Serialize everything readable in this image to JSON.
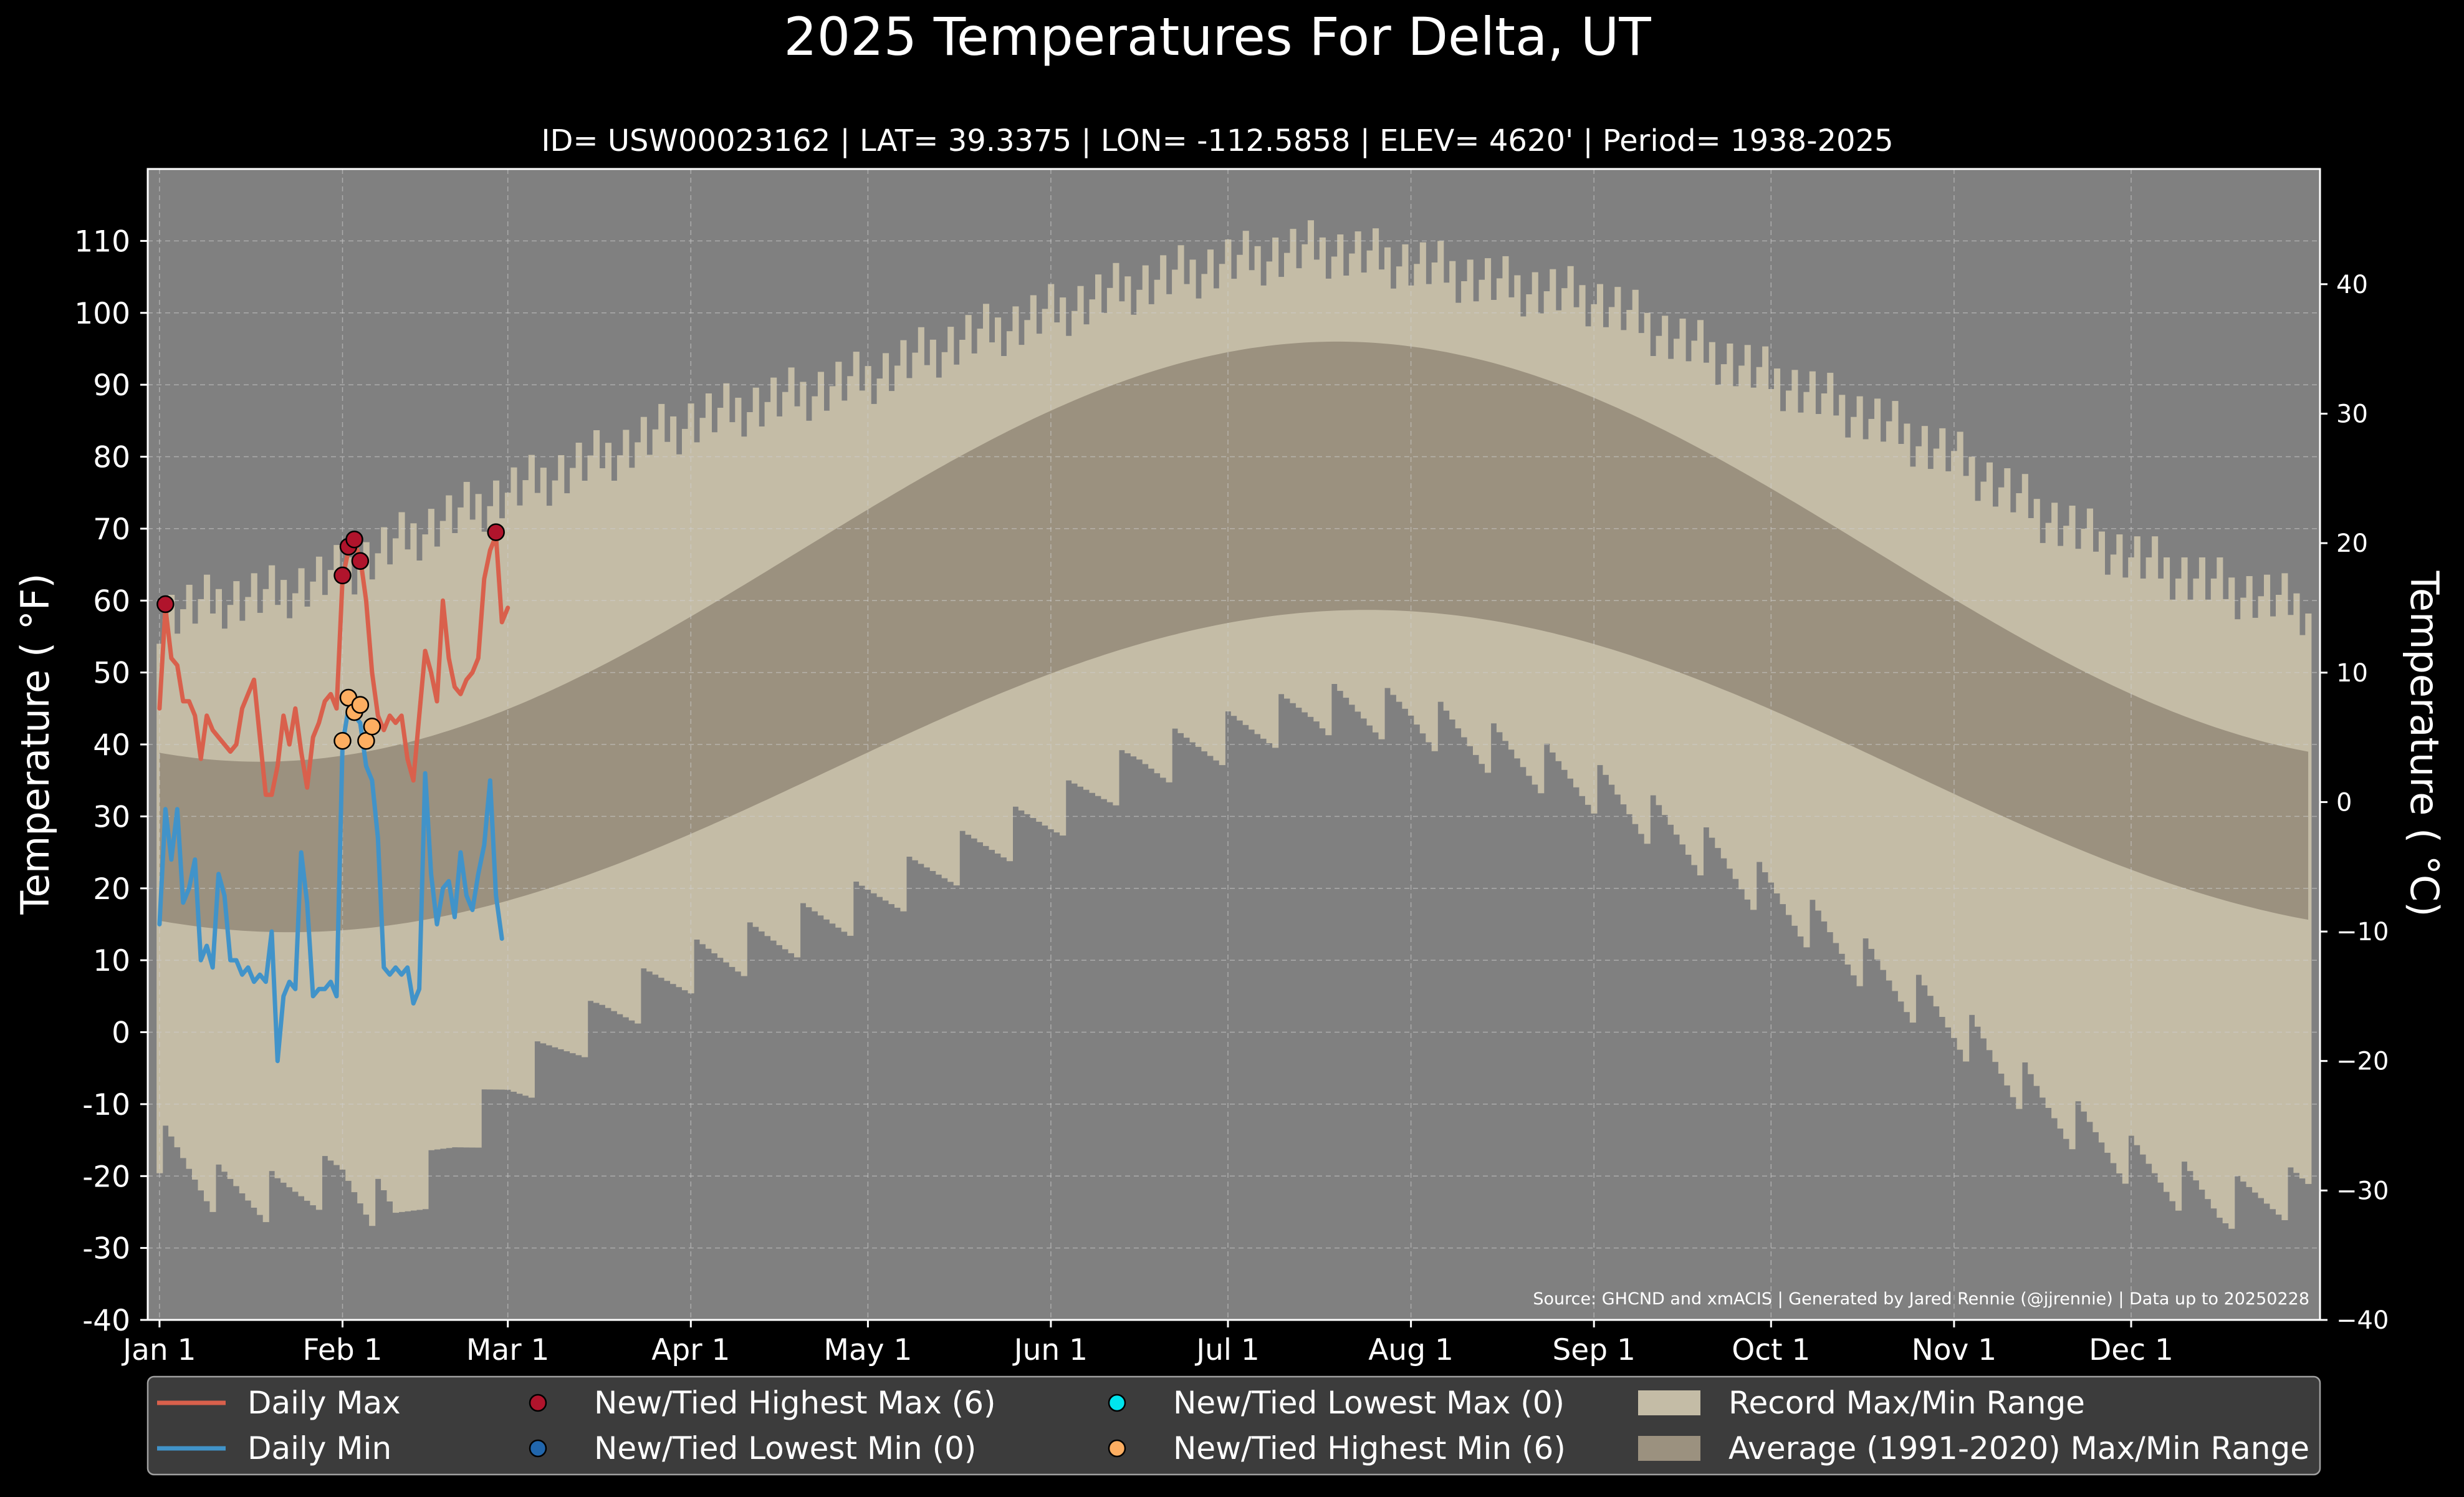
{
  "chart_data": {
    "type": "line",
    "title": "2025 Temperatures For Delta, UT",
    "subtitle": "ID= USW00023162 | LAT= 39.3375 | LON= -112.5858 | ELEV= 4620' | Period= 1938-2025",
    "ylabel": "Temperature ($^\\circ$F)",
    "ylabel_display": "Temperature ( °F)",
    "ylabel_right_display": "Temperature ( °C)",
    "source": "Source: GHCND and xmACIS | Generated by Jared Rennie (@jjrennie) | Data up to 20250228",
    "ylim": [
      -40,
      120
    ],
    "y2lim": [
      -40,
      48.9
    ],
    "xlim": [
      -2,
      366
    ],
    "grid": true,
    "legend_placement": "bottom",
    "y_ticks": [
      110,
      100,
      90,
      80,
      70,
      60,
      50,
      40,
      30,
      20,
      10,
      0,
      -10,
      -20,
      -30,
      -40
    ],
    "y_tick_labels": [
      "110",
      "100",
      "90",
      "80",
      "70",
      "60",
      "50",
      "40",
      "30",
      "20",
      "10",
      "0",
      "-10",
      "-20",
      "-30",
      "-40"
    ],
    "y2_ticks": [
      40,
      30,
      20,
      10,
      0,
      -10,
      -20,
      -30,
      -40
    ],
    "y2_tick_labels": [
      "40",
      "30",
      "20",
      "10",
      "0",
      "−10",
      "−20",
      "−30",
      "−40"
    ],
    "x_ticks": [
      {
        "day": 0,
        "label": "Jan 1"
      },
      {
        "day": 31,
        "label": "Feb 1"
      },
      {
        "day": 59,
        "label": "Mar 1"
      },
      {
        "day": 90,
        "label": "Apr 1"
      },
      {
        "day": 120,
        "label": "May 1"
      },
      {
        "day": 151,
        "label": "Jun 1"
      },
      {
        "day": 181,
        "label": "Jul 1"
      },
      {
        "day": 212,
        "label": "Aug 1"
      },
      {
        "day": 243,
        "label": "Sep 1"
      },
      {
        "day": 273,
        "label": "Oct 1"
      },
      {
        "day": 304,
        "label": "Nov 1"
      },
      {
        "day": 334,
        "label": "Dec 1"
      }
    ],
    "record_high_anchors": [
      [
        0,
        58
      ],
      [
        10,
        60
      ],
      [
        20,
        61
      ],
      [
        31,
        64
      ],
      [
        45,
        70
      ],
      [
        59,
        75
      ],
      [
        75,
        80
      ],
      [
        90,
        85
      ],
      [
        105,
        88
      ],
      [
        120,
        91
      ],
      [
        135,
        96
      ],
      [
        151,
        100
      ],
      [
        166,
        104
      ],
      [
        181,
        107
      ],
      [
        196,
        109
      ],
      [
        212,
        107
      ],
      [
        227,
        104
      ],
      [
        243,
        102
      ],
      [
        258,
        96
      ],
      [
        273,
        91
      ],
      [
        288,
        86
      ],
      [
        304,
        80
      ],
      [
        319,
        72
      ],
      [
        334,
        66
      ],
      [
        349,
        62
      ],
      [
        364,
        59
      ]
    ],
    "record_low_anchors": [
      [
        0,
        -16
      ],
      [
        10,
        -22
      ],
      [
        20,
        -23
      ],
      [
        31,
        -20
      ],
      [
        40,
        -26
      ],
      [
        50,
        -16
      ],
      [
        59,
        -8
      ],
      [
        75,
        2
      ],
      [
        90,
        9
      ],
      [
        105,
        13
      ],
      [
        120,
        18
      ],
      [
        135,
        24
      ],
      [
        151,
        30
      ],
      [
        166,
        37
      ],
      [
        181,
        41
      ],
      [
        196,
        45
      ],
      [
        212,
        44
      ],
      [
        227,
        39
      ],
      [
        243,
        34
      ],
      [
        258,
        27
      ],
      [
        273,
        19
      ],
      [
        288,
        10
      ],
      [
        304,
        1
      ],
      [
        319,
        -10
      ],
      [
        334,
        -18
      ],
      [
        349,
        -24
      ],
      [
        364,
        -22
      ]
    ],
    "series": [
      {
        "name": "Daily Max",
        "color": "#d9604c",
        "points": [
          [
            0,
            45
          ],
          [
            1,
            59
          ],
          [
            2,
            52
          ],
          [
            3,
            51
          ],
          [
            4,
            46
          ],
          [
            5,
            46
          ],
          [
            6,
            44
          ],
          [
            7,
            38
          ],
          [
            8,
            44
          ],
          [
            9,
            42
          ],
          [
            10,
            41
          ],
          [
            11,
            40
          ],
          [
            12,
            39
          ],
          [
            13,
            40
          ],
          [
            14,
            45
          ],
          [
            15,
            47
          ],
          [
            16,
            49
          ],
          [
            17,
            41
          ],
          [
            18,
            33
          ],
          [
            19,
            33
          ],
          [
            20,
            37
          ],
          [
            21,
            44
          ],
          [
            22,
            40
          ],
          [
            23,
            45
          ],
          [
            24,
            39
          ],
          [
            25,
            34
          ],
          [
            26,
            41
          ],
          [
            27,
            43
          ],
          [
            28,
            46
          ],
          [
            29,
            47
          ],
          [
            30,
            45
          ],
          [
            31,
            63
          ],
          [
            32,
            67
          ],
          [
            33,
            68
          ],
          [
            34,
            66
          ],
          [
            35,
            60
          ],
          [
            36,
            50
          ],
          [
            37,
            44
          ],
          [
            38,
            42
          ],
          [
            39,
            44
          ],
          [
            40,
            43
          ],
          [
            41,
            44
          ],
          [
            42,
            38
          ],
          [
            43,
            35
          ],
          [
            44,
            44
          ],
          [
            45,
            53
          ],
          [
            46,
            50
          ],
          [
            47,
            46
          ],
          [
            48,
            60
          ],
          [
            49,
            52
          ],
          [
            50,
            48
          ],
          [
            51,
            47
          ],
          [
            52,
            49
          ],
          [
            53,
            50
          ],
          [
            54,
            52
          ],
          [
            55,
            63
          ],
          [
            56,
            67
          ],
          [
            57,
            69
          ],
          [
            58,
            57
          ],
          [
            59,
            59
          ]
        ]
      },
      {
        "name": "Daily Min",
        "color": "#4193c9",
        "points": [
          [
            0,
            15
          ],
          [
            1,
            31
          ],
          [
            2,
            24
          ],
          [
            3,
            31
          ],
          [
            4,
            18
          ],
          [
            5,
            20
          ],
          [
            6,
            24
          ],
          [
            7,
            10
          ],
          [
            8,
            12
          ],
          [
            9,
            9
          ],
          [
            10,
            22
          ],
          [
            11,
            19
          ],
          [
            12,
            10
          ],
          [
            13,
            10
          ],
          [
            14,
            8
          ],
          [
            15,
            9
          ],
          [
            16,
            7
          ],
          [
            17,
            8
          ],
          [
            18,
            7
          ],
          [
            19,
            14
          ],
          [
            20,
            -4
          ],
          [
            21,
            5
          ],
          [
            22,
            7
          ],
          [
            23,
            6
          ],
          [
            24,
            25
          ],
          [
            25,
            18
          ],
          [
            26,
            5
          ],
          [
            27,
            6
          ],
          [
            28,
            6
          ],
          [
            29,
            7
          ],
          [
            30,
            5
          ],
          [
            31,
            40
          ],
          [
            32,
            45
          ],
          [
            33,
            44
          ],
          [
            34,
            43
          ],
          [
            35,
            37
          ],
          [
            36,
            35
          ],
          [
            37,
            27
          ],
          [
            38,
            9
          ],
          [
            39,
            8
          ],
          [
            40,
            9
          ],
          [
            41,
            8
          ],
          [
            42,
            9
          ],
          [
            43,
            4
          ],
          [
            44,
            6
          ],
          [
            45,
            36
          ],
          [
            46,
            22
          ],
          [
            47,
            15
          ],
          [
            48,
            20
          ],
          [
            49,
            21
          ],
          [
            50,
            16
          ],
          [
            51,
            25
          ],
          [
            52,
            19
          ],
          [
            53,
            17
          ],
          [
            54,
            22
          ],
          [
            55,
            26
          ],
          [
            56,
            35
          ],
          [
            57,
            19
          ],
          [
            58,
            13
          ]
        ]
      }
    ],
    "record_markers": {
      "new_tied_highest_max": [
        [
          1,
          59.5
        ],
        [
          31,
          63.5
        ],
        [
          32,
          67.5
        ],
        [
          33,
          68.5
        ],
        [
          34,
          65.5
        ],
        [
          57,
          69.5
        ]
      ],
      "new_tied_highest_min": [
        [
          31,
          40.5
        ],
        [
          32,
          46.5
        ],
        [
          33,
          44.5
        ],
        [
          34,
          45.5
        ],
        [
          35,
          40.5
        ],
        [
          36,
          42.5
        ]
      ],
      "new_tied_lowest_max": [],
      "new_tied_lowest_min": []
    },
    "legend": [
      {
        "label": "Daily Max",
        "kind": "line",
        "color": "#d9604c"
      },
      {
        "label": "Daily Min",
        "kind": "line",
        "color": "#4193c9"
      },
      {
        "label": "New/Tied Highest Max (6)",
        "kind": "marker",
        "color": "#b0142c"
      },
      {
        "label": "New/Tied Lowest Min (0)",
        "kind": "marker",
        "color": "#2166ac"
      },
      {
        "label": "New/Tied Lowest Max (0)",
        "kind": "marker",
        "color": "#00e5ee"
      },
      {
        "label": "New/Tied Highest Min (6)",
        "kind": "marker",
        "color": "#fdae61"
      },
      {
        "label": "Record Max/Min Range",
        "kind": "patch",
        "color": "#c4bca6"
      },
      {
        "label": "Average (1991-2020) Max/Min Range",
        "kind": "patch",
        "color": "#9b917f"
      }
    ],
    "colors": {
      "figure_background": "#000000",
      "axes_background": "#808080",
      "record_range": "#c4bca6",
      "average_range": "#9b917f",
      "legend_background": "#3c3c3c"
    }
  }
}
